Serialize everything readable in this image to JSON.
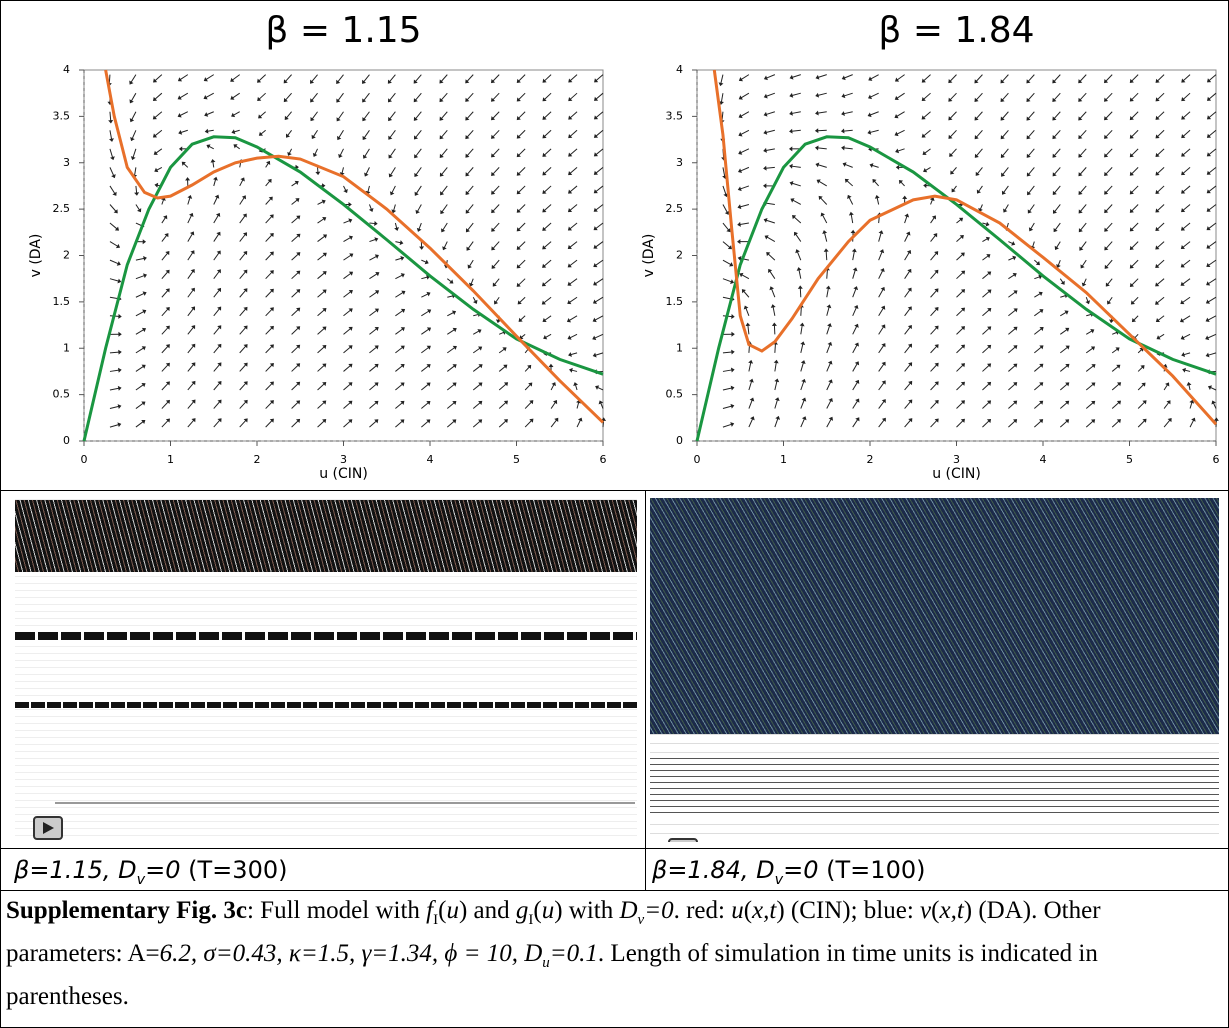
{
  "chart_data": [
    {
      "type": "line",
      "title": "β = 1.15",
      "x_label": "u (CIN)",
      "y_label": "v (DA)",
      "xlim": [
        0,
        6
      ],
      "ylim": [
        0,
        4
      ],
      "xticks": [
        0,
        1,
        2,
        3,
        4,
        5,
        6
      ],
      "yticks": [
        0,
        0.5,
        1,
        1.5,
        2,
        2.5,
        3,
        3.5,
        4
      ],
      "series": [
        {
          "color": "#1a9641",
          "x": [
            0,
            0.25,
            0.5,
            0.75,
            1,
            1.25,
            1.5,
            1.75,
            2,
            2.5,
            3,
            3.5,
            4,
            4.5,
            5,
            5.5,
            6
          ],
          "values": [
            0,
            1.0,
            1.9,
            2.5,
            2.95,
            3.2,
            3.28,
            3.27,
            3.17,
            2.9,
            2.55,
            2.17,
            1.78,
            1.42,
            1.1,
            0.88,
            0.72
          ]
        },
        {
          "color": "#e8702a",
          "x": [
            0.25,
            0.35,
            0.5,
            0.7,
            0.85,
            1,
            1.25,
            1.5,
            1.75,
            2,
            2.25,
            2.5,
            3,
            3.5,
            4,
            4.5,
            5,
            5.5,
            6
          ],
          "values": [
            4.0,
            3.5,
            2.95,
            2.68,
            2.62,
            2.64,
            2.76,
            2.9,
            3.0,
            3.05,
            3.07,
            3.04,
            2.85,
            2.5,
            2.08,
            1.62,
            1.13,
            0.65,
            0.2
          ]
        }
      ]
    },
    {
      "type": "line",
      "title": "β = 1.84",
      "x_label": "u (CIN)",
      "y_label": "v (DA)",
      "xlim": [
        0,
        6
      ],
      "ylim": [
        0,
        4
      ],
      "xticks": [
        0,
        1,
        2,
        3,
        4,
        5,
        6
      ],
      "yticks": [
        0,
        0.5,
        1,
        1.5,
        2,
        2.5,
        3,
        3.5,
        4
      ],
      "series": [
        {
          "color": "#1a9641",
          "x": [
            0,
            0.25,
            0.5,
            0.75,
            1,
            1.25,
            1.5,
            1.75,
            2,
            2.5,
            3,
            3.5,
            4,
            4.5,
            5,
            5.5,
            6
          ],
          "values": [
            0,
            1.0,
            1.9,
            2.5,
            2.95,
            3.2,
            3.28,
            3.27,
            3.17,
            2.9,
            2.55,
            2.17,
            1.78,
            1.42,
            1.1,
            0.88,
            0.72
          ]
        },
        {
          "color": "#e8702a",
          "x": [
            0.2,
            0.3,
            0.4,
            0.5,
            0.6,
            0.75,
            0.9,
            1.1,
            1.4,
            1.75,
            2,
            2.5,
            2.75,
            3,
            3.5,
            4,
            4.5,
            5,
            5.5,
            6
          ],
          "values": [
            4.0,
            3.3,
            2.3,
            1.35,
            1.04,
            0.97,
            1.07,
            1.32,
            1.75,
            2.15,
            2.38,
            2.6,
            2.64,
            2.6,
            2.35,
            1.98,
            1.6,
            1.15,
            0.7,
            0.18
          ]
        }
      ]
    }
  ],
  "panel_captions": [
    {
      "parts": [
        "β=1.15, D",
        "v",
        "=0",
        " (T=300)"
      ]
    },
    {
      "parts": [
        "β=1.84, D",
        "v",
        "=0",
        " (T=100)"
      ]
    }
  ],
  "figure_caption": {
    "parts": [
      "Supplementary Fig. 3c",
      ": Full model with ",
      "f",
      "I",
      "(",
      "u",
      ") and ",
      "g",
      "I",
      "(",
      "u",
      ") with ",
      "D",
      "v",
      "=0",
      ". red: ",
      "u",
      "(",
      "x,t",
      ") (CIN); blue: ",
      "v",
      "(",
      "x,t",
      ") (DA). Other parameters: A=",
      "6.2, σ=0.43, κ=1.5, γ=1.34, ϕ = 10, D",
      "u",
      "=0.1",
      ". Length of simulation in time units is indicated in parentheses."
    ]
  }
}
